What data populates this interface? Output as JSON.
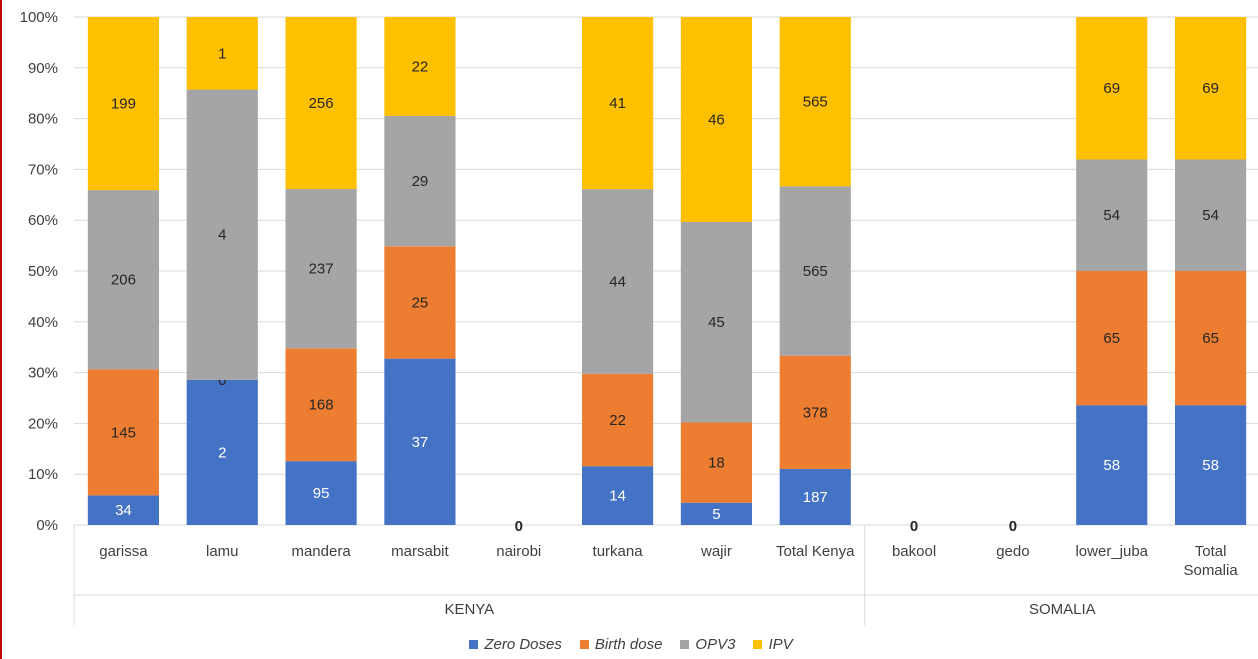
{
  "chart_data": {
    "type": "bar",
    "stacked": "percent",
    "categories": [
      "garissa",
      "lamu",
      "mandera",
      "marsabit",
      "nairobi",
      "turkana",
      "wajir",
      "Total Kenya",
      "bakool",
      "gedo",
      "lower_juba",
      "Total Somalia"
    ],
    "groups": [
      {
        "label": "KENYA",
        "categories": [
          "garissa",
          "lamu",
          "mandera",
          "marsabit",
          "nairobi",
          "turkana",
          "wajir",
          "Total Kenya"
        ]
      },
      {
        "label": "SOMALIA",
        "categories": [
          "bakool",
          "gedo",
          "lower_juba",
          "Total Somalia"
        ]
      }
    ],
    "series": [
      {
        "name": "Zero Doses",
        "color": "#4472c4",
        "values": [
          34,
          2,
          95,
          37,
          0,
          14,
          5,
          187,
          0,
          0,
          58,
          58
        ]
      },
      {
        "name": "Birth dose",
        "color": "#ed7d31",
        "values": [
          145,
          0,
          168,
          25,
          0,
          22,
          18,
          378,
          0,
          0,
          65,
          65
        ]
      },
      {
        "name": "OPV3",
        "color": "#a5a5a5",
        "values": [
          206,
          4,
          237,
          29,
          0,
          44,
          45,
          565,
          0,
          0,
          54,
          54
        ]
      },
      {
        "name": "IPV",
        "color": "#ffc000",
        "values": [
          199,
          1,
          256,
          22,
          0,
          41,
          46,
          565,
          0,
          0,
          69,
          69
        ]
      }
    ],
    "y_ticks": [
      "0%",
      "10%",
      "20%",
      "30%",
      "40%",
      "50%",
      "60%",
      "70%",
      "80%",
      "90%",
      "100%"
    ],
    "ylim": [
      0,
      100
    ],
    "grid": true,
    "legend_position": "bottom"
  }
}
